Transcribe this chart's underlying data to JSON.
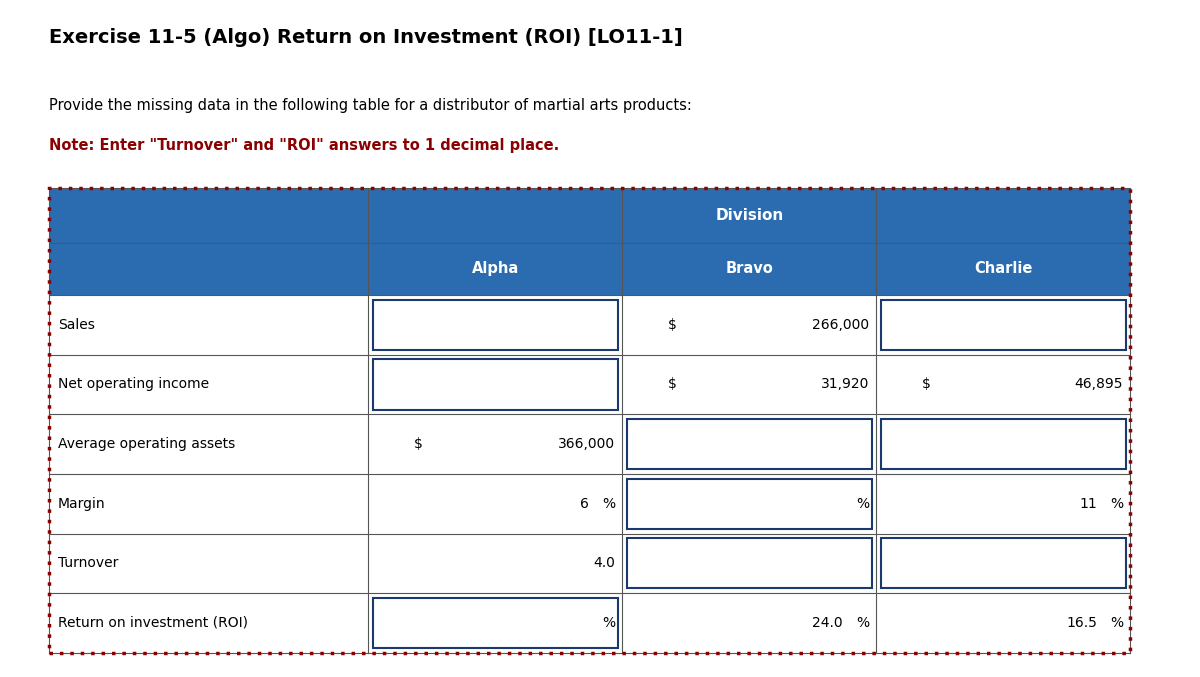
{
  "title": "Exercise 11-5 (Algo) Return on Investment (ROI) [LO11-1]",
  "subtitle_line1": "Provide the missing data in the following table for a distributor of martial arts products:",
  "subtitle_line2": "Note: Enter \"Turnover\" and \"ROI\" answers to 1 decimal place.",
  "bg_color": "#f0f0f0",
  "page_bg": "#ffffff",
  "table_header_bg": "#2b6cb0",
  "table_header_text_color": "#ffffff",
  "table_row_bg": "#ffffff",
  "table_border_color": "#555555",
  "input_box_border": "#1a3a6e",
  "dotted_border_color": "#8B0000",
  "note_color": "#8B0000",
  "title_color": "#000000",
  "subtitle_color": "#000000",
  "row_labels": [
    "Sales",
    "Net operating income",
    "Average operating assets",
    "Margin",
    "Turnover",
    "Return on investment (ROI)"
  ],
  "divisions": [
    "Alpha",
    "Bravo",
    "Charlie"
  ],
  "cells": {
    "Alpha": {
      "Sales": {
        "value": "",
        "prefix": "",
        "suffix": "",
        "input": true
      },
      "Net operating income": {
        "value": "",
        "prefix": "",
        "suffix": "",
        "input": true
      },
      "Average operating assets": {
        "value": "366,000",
        "prefix": "$",
        "suffix": "",
        "input": false
      },
      "Margin": {
        "value": "6",
        "prefix": "",
        "suffix": "%",
        "input": false
      },
      "Turnover": {
        "value": "4.0",
        "prefix": "",
        "suffix": "",
        "input": false
      },
      "Return on investment (ROI)": {
        "value": "",
        "prefix": "",
        "suffix": "%",
        "input": true
      }
    },
    "Bravo": {
      "Sales": {
        "value": "266,000",
        "prefix": "$",
        "suffix": "",
        "input": false
      },
      "Net operating income": {
        "value": "31,920",
        "prefix": "$",
        "suffix": "",
        "input": false
      },
      "Average operating assets": {
        "value": "",
        "prefix": "",
        "suffix": "",
        "input": true
      },
      "Margin": {
        "value": "",
        "prefix": "",
        "suffix": "%",
        "input": true
      },
      "Turnover": {
        "value": "",
        "prefix": "",
        "suffix": "",
        "input": true
      },
      "Return on investment (ROI)": {
        "value": "24.0",
        "prefix": "",
        "suffix": "%",
        "input": false
      }
    },
    "Charlie": {
      "Sales": {
        "value": "",
        "prefix": "",
        "suffix": "",
        "input": true
      },
      "Net operating income": {
        "value": "46,895",
        "prefix": "$",
        "suffix": "",
        "input": false
      },
      "Average operating assets": {
        "value": "",
        "prefix": "",
        "suffix": "",
        "input": true
      },
      "Margin": {
        "value": "11",
        "prefix": "",
        "suffix": "%",
        "input": false
      },
      "Turnover": {
        "value": "",
        "prefix": "",
        "suffix": "",
        "input": true
      },
      "Return on investment (ROI)": {
        "value": "16.5",
        "prefix": "",
        "suffix": "%",
        "input": false
      }
    }
  },
  "title_fontsize": 14,
  "subtitle_fontsize": 10.5,
  "note_fontsize": 10.5,
  "table_fontsize": 10
}
